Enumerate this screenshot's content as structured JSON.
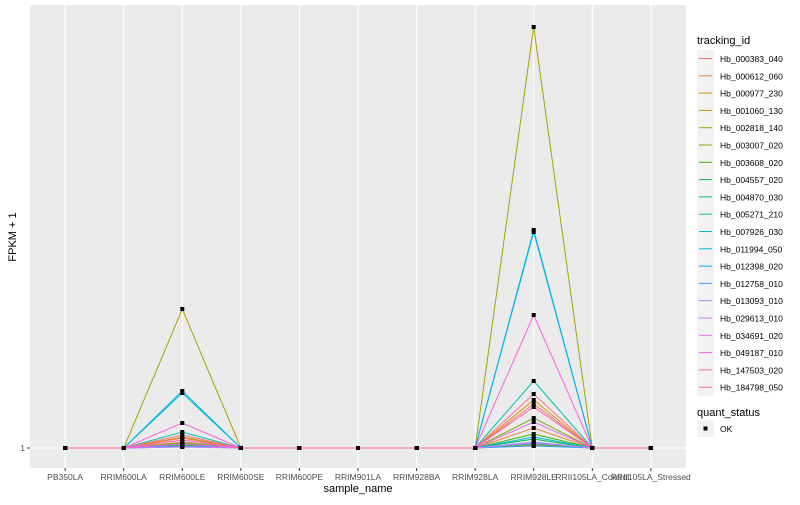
{
  "chart_data": {
    "type": "line",
    "title": "",
    "xlabel": "sample_name",
    "ylabel": "FPKM + 1",
    "y_ticks": [
      "1"
    ],
    "ylim": [
      -1,
      45.3
    ],
    "grid": true,
    "legend_position": "right",
    "categories": [
      "PB350LA",
      "RRIM600LA",
      "RRIM600LE",
      "RRIM600SE",
      "RRIM600PE",
      "RRIM901LA",
      "RRIM928BA",
      "RRIM928LA",
      "RRIM928LE",
      "RRII105LA_Control",
      "RRII105LA_Stressed"
    ],
    "legend_title": "tracking_id",
    "series": [
      {
        "name": "Hb_000383_040",
        "color": "#F8766D",
        "values": [
          1,
          1,
          2.0,
          1,
          1,
          1,
          1,
          1,
          5.4,
          1,
          1
        ]
      },
      {
        "name": "Hb_000612_060",
        "color": "#EA8331",
        "values": [
          1,
          1,
          1.6,
          1,
          1,
          1,
          1,
          1,
          3.0,
          1,
          1
        ]
      },
      {
        "name": "Hb_000977_230",
        "color": "#D89000",
        "values": [
          1,
          1,
          2.1,
          1,
          1,
          1,
          1,
          1,
          5.8,
          1,
          1
        ]
      },
      {
        "name": "Hb_001060_130",
        "color": "#C09B00",
        "values": [
          1,
          1,
          1.3,
          1,
          1,
          1,
          1,
          1,
          1.3,
          1,
          1
        ]
      },
      {
        "name": "Hb_002818_140",
        "color": "#A3A500",
        "values": [
          1,
          1,
          14.9,
          1,
          1,
          1,
          1,
          1,
          43.1,
          1,
          1
        ]
      },
      {
        "name": "Hb_003007_020",
        "color": "#7CAE00",
        "values": [
          1,
          1,
          1.5,
          1,
          1,
          1,
          1,
          1,
          4.0,
          1,
          1
        ]
      },
      {
        "name": "Hb_003608_020",
        "color": "#39B600",
        "values": [
          1,
          1,
          1.3,
          1,
          1,
          1,
          1,
          1,
          2.4,
          1,
          1
        ]
      },
      {
        "name": "Hb_004557_020",
        "color": "#00BB4E",
        "values": [
          1,
          1,
          1.2,
          1,
          1,
          1,
          1,
          1,
          1.9,
          1,
          1
        ]
      },
      {
        "name": "Hb_004870_030",
        "color": "#00BF7D",
        "values": [
          1,
          1,
          1.2,
          1,
          1,
          1,
          1,
          1,
          1.4,
          1,
          1
        ]
      },
      {
        "name": "Hb_005271_210",
        "color": "#00C1A3",
        "values": [
          1,
          1,
          2.6,
          1,
          1,
          1,
          1,
          1,
          7.7,
          1,
          1
        ]
      },
      {
        "name": "Hb_007926_030",
        "color": "#00BFC4",
        "values": [
          1,
          1,
          6.5,
          1,
          1,
          1,
          1,
          1,
          22.6,
          1,
          1
        ]
      },
      {
        "name": "Hb_011994_050",
        "color": "#00BAE0",
        "values": [
          1,
          1,
          1.4,
          1,
          1,
          1,
          1,
          1,
          2.1,
          1,
          1
        ]
      },
      {
        "name": "Hb_012398_020",
        "color": "#00B0F6",
        "values": [
          1,
          1,
          6.7,
          1,
          1,
          1,
          1,
          1,
          22.8,
          1,
          1
        ]
      },
      {
        "name": "Hb_012758_010",
        "color": "#35A2FF",
        "values": [
          1,
          1,
          1.2,
          1,
          1,
          1,
          1,
          1,
          1.2,
          1,
          1
        ]
      },
      {
        "name": "Hb_013093_010",
        "color": "#9590FF",
        "values": [
          1,
          1,
          1.1,
          1,
          1,
          1,
          1,
          1,
          1.6,
          1,
          1
        ]
      },
      {
        "name": "Hb_029613_010",
        "color": "#C77CFF",
        "values": [
          1,
          1,
          1.1,
          1,
          1,
          1,
          1,
          1,
          1.5,
          1,
          1
        ]
      },
      {
        "name": "Hb_034691_020",
        "color": "#E76BF3",
        "values": [
          1,
          1,
          1.4,
          1,
          1,
          1,
          1,
          1,
          3.6,
          1,
          1
        ]
      },
      {
        "name": "Hb_049187_010",
        "color": "#FA62DB",
        "values": [
          1,
          1,
          3.5,
          1,
          1,
          1,
          1,
          1,
          14.3,
          1,
          1
        ]
      },
      {
        "name": "Hb_147503_020",
        "color": "#FF62BC",
        "values": [
          1,
          1,
          1.8,
          1,
          1,
          1,
          1,
          1,
          5.1,
          1,
          1
        ]
      },
      {
        "name": "Hb_184798_050",
        "color": "#FF6C91",
        "values": [
          1,
          1,
          2.3,
          1,
          1,
          1,
          1,
          1,
          6.4,
          1,
          1
        ]
      }
    ],
    "shape_legend": {
      "title": "quant_status",
      "items": [
        "OK"
      ]
    }
  }
}
